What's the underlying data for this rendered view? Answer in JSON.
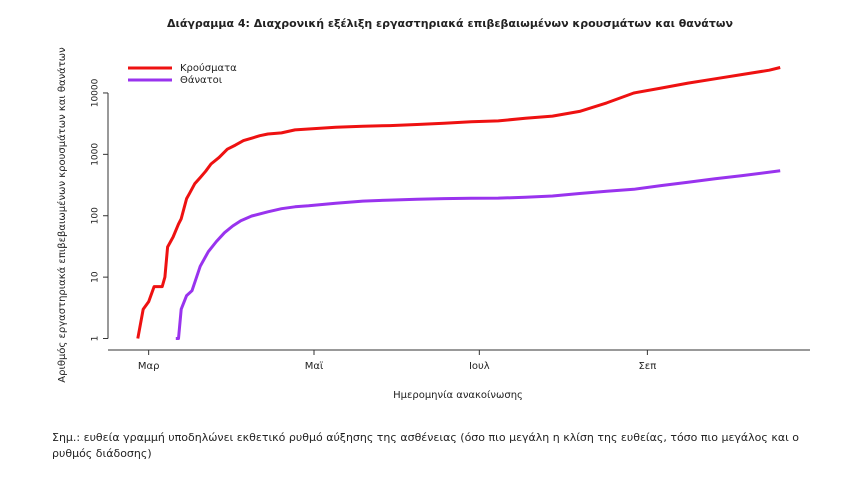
{
  "chart_data": {
    "type": "line",
    "title": "Διάγραμμα 4: Διαχρονική εξέλιξη εργαστηριακά επιβεβαιωμένων κρουσμάτων και θανάτων",
    "xlabel": "Ημερομηνία ανακοίνωσης",
    "ylabel": "Αριθμός εργαστηριακά επιβεβαιωμένων κρουσμάτων και θανάτων",
    "log_scale_y": true,
    "legend": "top-left",
    "xlim": [
      46,
      305
    ],
    "xticks": [
      {
        "value": 61,
        "label": "Μαρ"
      },
      {
        "value": 122,
        "label": "Μαϊ"
      },
      {
        "value": 183,
        "label": "Ιουλ"
      },
      {
        "value": 245,
        "label": "Σεπ"
      }
    ],
    "ylim": [
      0.65,
      40000
    ],
    "yticks": [
      1,
      10,
      100,
      1000,
      10000
    ],
    "series": [
      {
        "name": "Κρούσματα",
        "color": "#ee1111",
        "x": [
          57,
          59,
          61,
          63,
          66,
          67,
          68,
          70,
          72,
          73,
          75,
          76,
          78,
          80,
          82,
          84,
          87,
          90,
          93,
          96,
          99,
          102,
          105,
          110,
          115,
          120,
          130,
          140,
          150,
          160,
          170,
          180,
          190,
          200,
          210,
          220,
          230,
          240,
          250,
          260,
          270,
          280,
          290,
          294
        ],
        "values": [
          1,
          3,
          4,
          7,
          7,
          10,
          31,
          45,
          73,
          89,
          190,
          228,
          331,
          418,
          530,
          695,
          892,
          1212,
          1415,
          1673,
          1832,
          2011,
          2145,
          2235,
          2506,
          2591,
          2760,
          2874,
          2937,
          3068,
          3203,
          3390,
          3500,
          3880,
          4200,
          5000,
          6900,
          10000,
          12000,
          14500,
          17000,
          20000,
          23500,
          26000
        ]
      },
      {
        "name": "Θάνατοι",
        "color": "#9933ee",
        "x": [
          71,
          72,
          73,
          75,
          77,
          80,
          83,
          86,
          89,
          92,
          95,
          99,
          105,
          110,
          115,
          120,
          130,
          140,
          150,
          160,
          170,
          180,
          190,
          200,
          210,
          220,
          230,
          240,
          250,
          260,
          270,
          280,
          294
        ],
        "values": [
          1,
          1,
          3,
          5,
          6,
          15,
          26,
          38,
          53,
          68,
          83,
          99,
          116,
          130,
          140,
          145,
          160,
          173,
          180,
          185,
          190,
          192,
          194,
          200,
          210,
          230,
          250,
          270,
          310,
          350,
          400,
          450,
          540
        ]
      }
    ],
    "note": "Σημ.: ευθεία γραμμή υποδηλώνει εκθετικό ρυθμό αύξησης της ασθένειας (όσο πιο μεγάλη η κλίση της ευθείας, τόσο πιο μεγάλος και ο ρυθμός διάδοσης)"
  }
}
